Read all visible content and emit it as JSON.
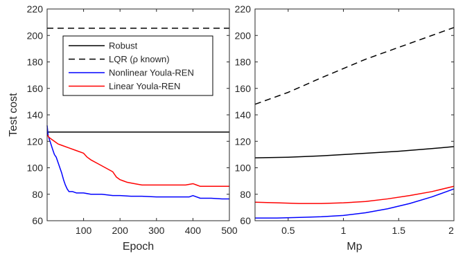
{
  "chart_data": [
    {
      "type": "line",
      "xlabel": "Epoch",
      "ylabel": "Test cost",
      "xlim": [
        0,
        500
      ],
      "ylim": [
        60,
        220
      ],
      "xticks": [
        100,
        200,
        300,
        400,
        500
      ],
      "yticks": [
        60,
        80,
        100,
        120,
        140,
        160,
        180,
        200,
        220
      ],
      "grid": false,
      "legend_position": "top-center",
      "series": [
        {
          "name": "Robust",
          "color": "#000000",
          "dash": "solid",
          "x": [
            0,
            500
          ],
          "y": [
            127,
            127
          ]
        },
        {
          "name": "LQR (ρ known)",
          "color": "#000000",
          "dash": "dashed",
          "x": [
            0,
            500
          ],
          "y": [
            205.5,
            205.5
          ]
        },
        {
          "name": "Nonlinear Youla-REN",
          "color": "#0000ff",
          "dash": "solid",
          "x": [
            0,
            3,
            8,
            15,
            20,
            25,
            30,
            35,
            40,
            45,
            50,
            55,
            60,
            70,
            80,
            100,
            120,
            150,
            180,
            200,
            230,
            260,
            300,
            330,
            360,
            390,
            400,
            420,
            450,
            480,
            500
          ],
          "y": [
            132,
            124,
            120,
            114,
            110,
            108,
            104,
            100,
            96,
            91,
            87,
            84,
            82,
            82,
            81,
            81,
            80,
            80,
            79,
            79,
            78.5,
            78.5,
            78,
            78,
            78,
            78,
            79,
            77,
            77,
            76.5,
            76.5
          ]
        },
        {
          "name": "Linear Youla-REN",
          "color": "#ff0000",
          "dash": "solid",
          "x": [
            0,
            5,
            10,
            15,
            20,
            30,
            40,
            60,
            80,
            100,
            110,
            120,
            140,
            160,
            180,
            190,
            200,
            210,
            220,
            240,
            260,
            280,
            300,
            320,
            350,
            380,
            400,
            410,
            420,
            450,
            480,
            500
          ],
          "y": [
            125,
            123,
            122,
            121,
            120,
            118,
            117,
            115,
            113,
            111,
            108,
            106,
            103,
            100,
            97,
            93,
            91,
            90,
            89,
            88,
            87,
            87,
            87,
            87,
            87,
            87,
            88,
            87,
            86,
            86,
            86,
            86
          ]
        }
      ]
    },
    {
      "type": "line",
      "xlabel": "Mp",
      "ylabel": "",
      "xlim": [
        0.2,
        2
      ],
      "ylim": [
        60,
        220
      ],
      "xticks": [
        0.5,
        1,
        1.5,
        2
      ],
      "yticks": [
        60,
        80,
        100,
        120,
        140,
        160,
        180,
        200,
        220
      ],
      "grid": false,
      "series": [
        {
          "color": "#000000",
          "dash": "solid",
          "x": [
            0.2,
            0.5,
            0.8,
            1.0,
            1.2,
            1.5,
            1.8,
            2.0
          ],
          "y": [
            107.5,
            108,
            109,
            110,
            111,
            112.5,
            114.5,
            116
          ]
        },
        {
          "color": "#000000",
          "dash": "dashed",
          "x": [
            0.2,
            0.5,
            0.8,
            1.0,
            1.2,
            1.5,
            1.8,
            2.0
          ],
          "y": [
            148,
            157,
            168,
            175,
            182,
            191,
            200,
            206
          ]
        },
        {
          "color": "#ff0000",
          "dash": "solid",
          "x": [
            0.2,
            0.4,
            0.6,
            0.8,
            1.0,
            1.2,
            1.4,
            1.6,
            1.8,
            2.0
          ],
          "y": [
            74,
            73.5,
            73,
            73,
            73.5,
            74.5,
            76.5,
            79,
            82,
            86
          ]
        },
        {
          "color": "#0000ff",
          "dash": "solid",
          "x": [
            0.2,
            0.4,
            0.6,
            0.8,
            1.0,
            1.2,
            1.4,
            1.6,
            1.8,
            2.0
          ],
          "y": [
            62,
            62,
            62.5,
            63,
            64,
            66,
            69,
            73,
            78,
            84
          ]
        }
      ]
    }
  ]
}
